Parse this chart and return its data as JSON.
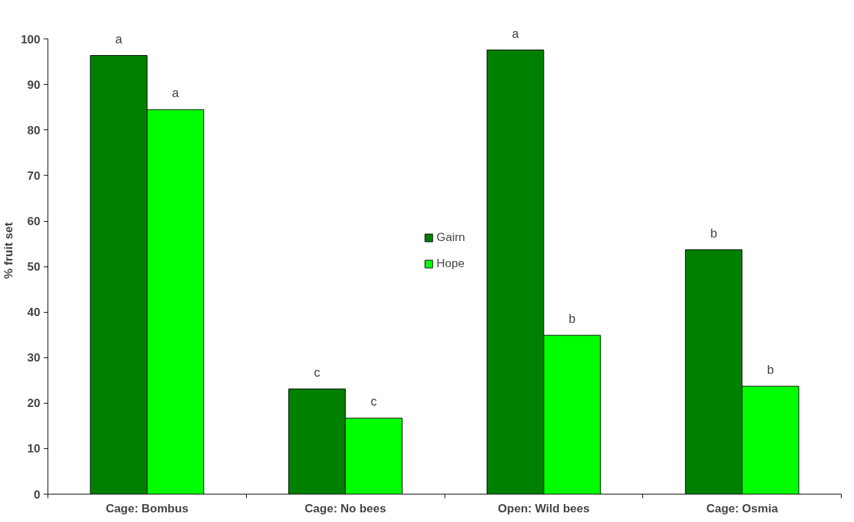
{
  "chart_data": {
    "type": "bar",
    "ylabel": "% fruit set",
    "categories": [
      "Cage: Bombus",
      "Cage: No bees",
      "Open: Wild bees",
      "Cage: Osmia"
    ],
    "series": [
      {
        "name": "Gairn",
        "color": "#008000",
        "values": [
          96.4,
          23.1,
          97.6,
          53.7
        ]
      },
      {
        "name": "Hope",
        "color": "#00ff00",
        "values": [
          84.5,
          16.7,
          34.9,
          23.7
        ]
      }
    ],
    "ylim": [
      0,
      100
    ],
    "yticks": [
      0,
      10,
      20,
      30,
      40,
      50,
      60,
      70,
      80,
      90,
      100
    ],
    "grid": false,
    "legend": "center",
    "annotations": [
      {
        "text": "a",
        "x": "Cage: Bombus",
        "y": 96.4
      },
      {
        "text": "a",
        "x": "Cage: Bombus",
        "y": 84.5
      },
      {
        "text": "c",
        "x": "Cage: No bees",
        "y": 23.1
      },
      {
        "text": "c",
        "x": "Cage: No bees",
        "y": 16.7
      },
      {
        "text": "a",
        "x": "Open: Wild bees",
        "y": 97.6
      },
      {
        "text": "b",
        "x": "Open: Wild bees",
        "y": 34.9
      },
      {
        "text": "b",
        "x": "Cage: Osmia",
        "y": 53.7
      },
      {
        "text": "b",
        "x": "Cage: Osmia",
        "y": 23.7
      }
    ]
  }
}
